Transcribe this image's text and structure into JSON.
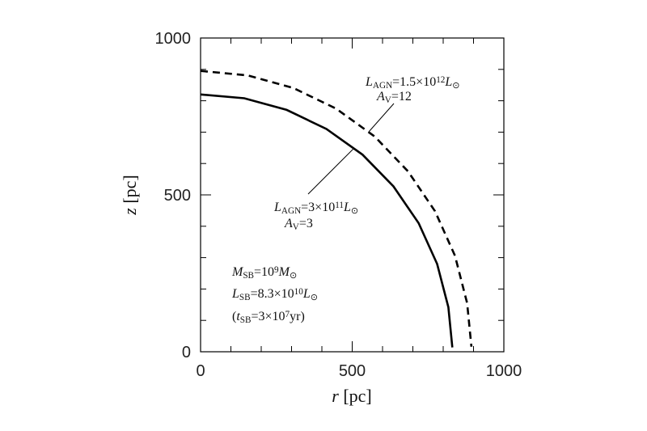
{
  "chart_data": {
    "type": "line",
    "xlabel": [
      {
        "text": "r",
        "italic": true
      },
      {
        "text": "  [pc]"
      }
    ],
    "ylabel": [
      {
        "text": "z",
        "italic": true
      },
      {
        "text": "  [pc]"
      }
    ],
    "xlim": [
      0,
      1000
    ],
    "ylim": [
      0,
      1000
    ],
    "xticks": [
      0,
      500,
      1000
    ],
    "yticks": [
      0,
      500,
      1000
    ],
    "xminorticks": [
      100,
      200,
      300,
      400,
      600,
      700,
      800,
      900
    ],
    "yminorticks": [
      100,
      200,
      300,
      400,
      600,
      700,
      800,
      900
    ],
    "series": [
      {
        "color": "#000000",
        "style": "solid",
        "x": [
          0,
          144,
          284,
          415,
          534,
          636,
          719,
          780,
          817,
          830
        ],
        "values": [
          820,
          808,
          771,
          710,
          628,
          527,
          410,
          280,
          142,
          14
        ]
      },
      {
        "color": "#000000",
        "style": "dashed",
        "x": [
          0,
          155,
          305,
          447,
          574,
          684,
          773,
          839,
          879,
          893
        ],
        "values": [
          895,
          881,
          841,
          775,
          686,
          575,
          448,
          306,
          155,
          16
        ]
      }
    ],
    "annotations": [
      {
        "parts": [
          {
            "text": "L",
            "italic": true
          },
          {
            "text": "AGN",
            "shift": "sub"
          },
          {
            "text": "=1.5×10"
          },
          {
            "text": "12",
            "shift": "sup"
          },
          {
            "text": "L",
            "italic": true
          },
          {
            "text": "⊙",
            "shift": "sub"
          }
        ]
      },
      {
        "parts": [
          {
            "text": "A",
            "italic": true
          },
          {
            "text": "V",
            "shift": "sub"
          },
          {
            "text": "=12"
          }
        ]
      },
      {
        "parts": [
          {
            "text": "L",
            "italic": true
          },
          {
            "text": "AGN",
            "shift": "sub"
          },
          {
            "text": "=3×10"
          },
          {
            "text": "11",
            "shift": "sup"
          },
          {
            "text": "L",
            "italic": true
          },
          {
            "text": "⊙",
            "shift": "sub"
          }
        ]
      },
      {
        "parts": [
          {
            "text": "A",
            "italic": true
          },
          {
            "text": "V",
            "shift": "sub"
          },
          {
            "text": "=3"
          }
        ]
      },
      {
        "parts": [
          {
            "text": "M",
            "italic": true
          },
          {
            "text": "SB",
            "shift": "sub"
          },
          {
            "text": "=10"
          },
          {
            "text": "9",
            "shift": "sup"
          },
          {
            "text": "M",
            "italic": true
          },
          {
            "text": "⊙",
            "shift": "sub"
          }
        ]
      },
      {
        "parts": [
          {
            "text": "L",
            "italic": true
          },
          {
            "text": "SB",
            "shift": "sub"
          },
          {
            "text": "=8.3×10"
          },
          {
            "text": "10",
            "shift": "sup"
          },
          {
            "text": "L",
            "italic": true
          },
          {
            "text": "⊙",
            "shift": "sub"
          }
        ]
      },
      {
        "parts": [
          {
            "text": "("
          },
          {
            "text": "t",
            "italic": true
          },
          {
            "text": "SB",
            "shift": "sub"
          },
          {
            "text": "=3×10"
          },
          {
            "text": "7",
            "shift": "sup"
          },
          {
            "text": "yr)"
          }
        ]
      }
    ]
  }
}
